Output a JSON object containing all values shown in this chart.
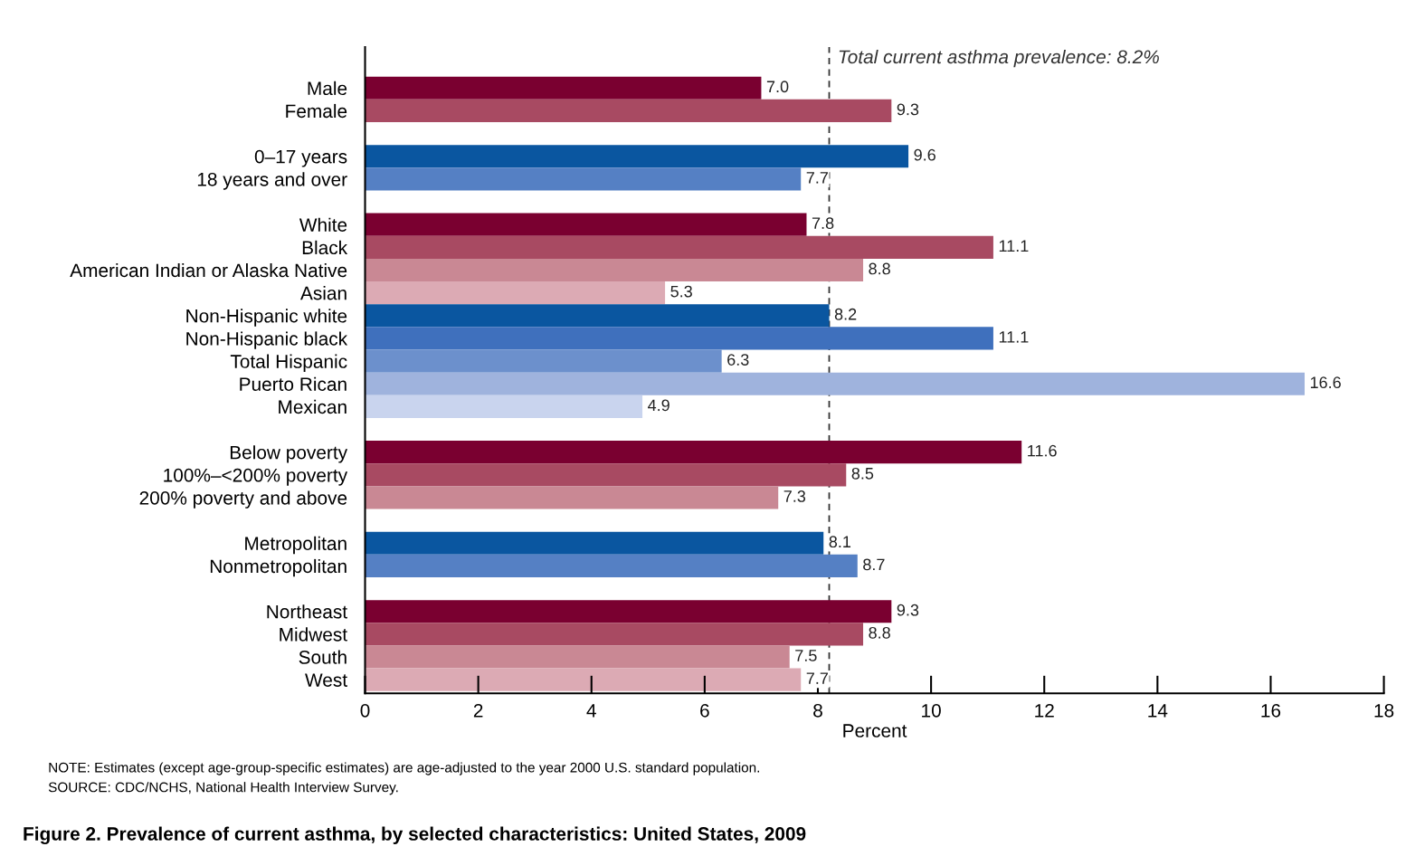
{
  "chart_data": {
    "type": "bar",
    "orientation": "horizontal",
    "title": "Figure 2. Prevalence of current asthma, by selected characteristics: United States, 2009",
    "xlabel": "Percent",
    "categories": [
      "Male",
      "Female",
      null,
      "0–17 years",
      "18 years and over",
      null,
      "White",
      "Black",
      "American Indian or Alaska Native",
      "Asian",
      "Non-Hispanic white",
      "Non-Hispanic black",
      "Total Hispanic",
      "Puerto Rican",
      "Mexican",
      null,
      "Below poverty",
      "100%–<200% poverty",
      "200% poverty and above",
      null,
      "Metropolitan",
      "Nonmetropolitan",
      null,
      "Northeast",
      "Midwest",
      "South",
      "West"
    ],
    "values": [
      7.0,
      9.3,
      null,
      9.6,
      7.7,
      null,
      7.8,
      11.1,
      8.8,
      5.3,
      8.2,
      11.1,
      6.3,
      16.6,
      4.9,
      null,
      11.6,
      8.5,
      7.3,
      null,
      8.1,
      8.7,
      null,
      9.3,
      8.8,
      7.5,
      7.7
    ],
    "colors": [
      "#7a0030",
      "#a84a62",
      null,
      "#0a56a0",
      "#5580c4",
      null,
      "#7a0030",
      "#a84a62",
      "#c98894",
      "#dcaab4",
      "#0a56a0",
      "#3f70bd",
      "#6c90cc",
      "#9fb3dd",
      "#c9d4ee",
      null,
      "#7a0030",
      "#a84a62",
      "#c98894",
      null,
      "#0a56a0",
      "#5580c4",
      null,
      "#7a0030",
      "#a84a62",
      "#c98894",
      "#dcaab4"
    ],
    "value_labels": [
      "7.0",
      "9.3",
      null,
      "9.6",
      "7.7",
      null,
      "7.8",
      "11.1",
      "8.8",
      "5.3",
      "8.2",
      "11.1",
      "6.3",
      "16.6",
      "4.9",
      null,
      "11.6",
      "8.5",
      "7.3",
      null,
      "8.1",
      "8.7",
      null,
      "9.3",
      "8.8",
      "7.5",
      "7.7"
    ],
    "xlim": [
      0,
      18
    ],
    "xticks": [
      0,
      2,
      4,
      6,
      8,
      10,
      12,
      14,
      16,
      18
    ],
    "ref_lines": [
      {
        "axis": "x",
        "value": 8.2,
        "label": "Total current asthma prevalence: 8.2%",
        "line_style": "dashed",
        "color": "#333333"
      }
    ],
    "annotations": [
      "NOTE: Estimates (except age-group-specific estimates) are age-adjusted to the year 2000 U.S. standard population.",
      "SOURCE: CDC/NCHS, National Health Interview Survey."
    ],
    "grid": false,
    "legend": false
  }
}
